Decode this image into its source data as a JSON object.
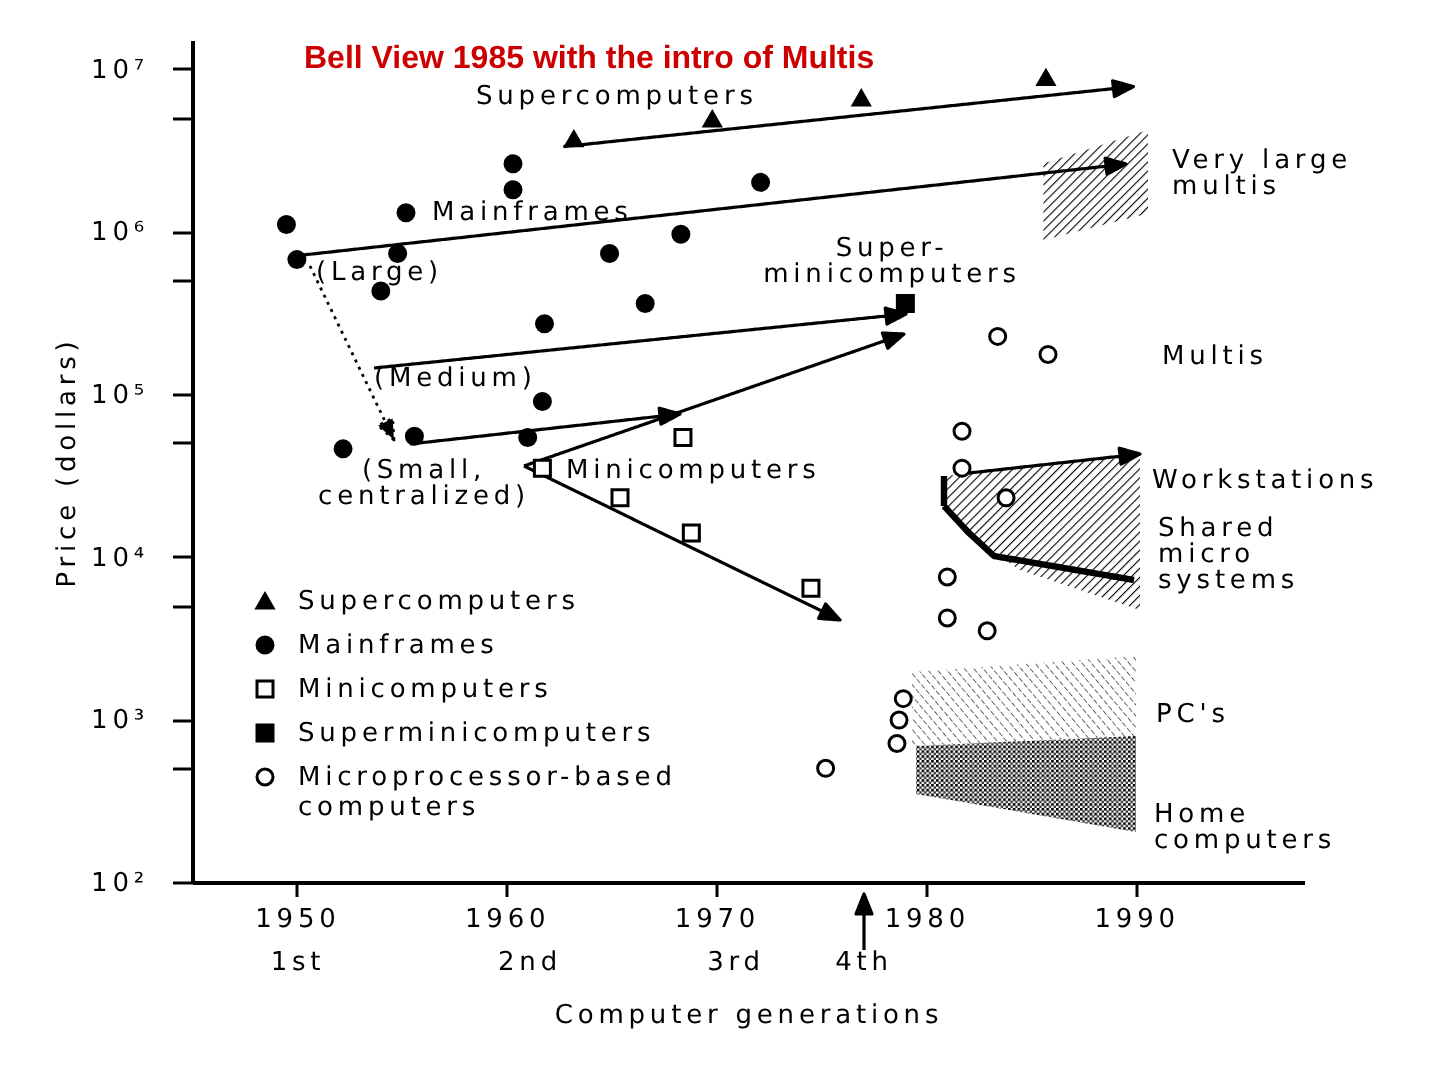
{
  "chart_data": {
    "type": "scatter",
    "title": "Bell View 1985 with the intro of Multis",
    "xlabel": "Computer generations",
    "ylabel": "Price (dollars)",
    "log": true,
    "legend": "bottom left",
    "xlim": [
      1945,
      1998
    ],
    "xticks": [
      1950,
      1960,
      1970,
      1980,
      1990
    ],
    "ylim": [
      100,
      15000000
    ],
    "yticks": [
      {
        "value": 100,
        "label": "10²"
      },
      {
        "value": 500,
        "label": null
      },
      {
        "value": 1000,
        "label": "10³"
      },
      {
        "value": 5000,
        "label": null
      },
      {
        "value": 10000,
        "label": "10⁴"
      },
      {
        "value": 50000,
        "label": null
      },
      {
        "value": 100000,
        "label": "10⁵"
      },
      {
        "value": 500000,
        "label": null
      },
      {
        "value": 1000000,
        "label": "10⁶"
      },
      {
        "value": 5000000,
        "label": null
      },
      {
        "value": 10000000,
        "label": "10⁷"
      }
    ],
    "series": [
      {
        "name": "Supercomputers",
        "marker": "triangle",
        "color": "#000000",
        "x": [
          1963.2,
          1969.8,
          1976.9,
          1985.7
        ],
        "values": [
          3700000,
          4900000,
          6600000,
          8800000
        ]
      },
      {
        "name": "Mainframes",
        "marker": "circle",
        "color": "#000000",
        "x": [
          1949.5,
          1950.0,
          1952.2,
          1954.0,
          1954.8,
          1955.2,
          1955.6,
          1960.3,
          1960.3,
          1961.0,
          1961.7,
          1961.8,
          1964.9,
          1966.6,
          1968.3,
          1972.1
        ],
        "values": [
          1100000,
          670000,
          46000,
          430000,
          730000,
          1300000,
          55000,
          2600000,
          1800000,
          54000,
          90000,
          270000,
          730000,
          360000,
          960000,
          2000000
        ]
      },
      {
        "name": "Minicomputers",
        "marker": "square",
        "color": "#000000",
        "x": [
          1961.7,
          1965.4,
          1968.4,
          1968.8,
          1974.5
        ],
        "values": [
          35000,
          23000,
          54000,
          14000,
          6400
        ]
      },
      {
        "name": "Superminicomputers",
        "marker": "square",
        "color": "#000000",
        "x": [
          1979.0
        ],
        "values": [
          360000
        ]
      },
      {
        "name": "Microprocessor-based computers",
        "marker": "circle",
        "color": "#000000",
        "x": [
          1975.2,
          1978.6,
          1978.7,
          1978.9,
          1981.0,
          1981.0,
          1981.7,
          1981.7,
          1982.9,
          1983.4,
          1983.8,
          1985.8
        ],
        "values": [
          500,
          710,
          990,
          1340,
          7500,
          4200,
          59000,
          35000,
          3500,
          226000,
          23000,
          175000
        ]
      }
    ],
    "annotations": [
      "Supercomputers",
      "Mainframes",
      "(Large)",
      "(Medium)",
      "(Small,\ncentralized)",
      "Minicomputers",
      "Super-\nminicomputers",
      "Very large\nmultis",
      "Multis",
      "Workstations",
      "Shared\nmicro\nsystems",
      "PC's",
      "Home\ncomputers",
      "1st",
      "2nd",
      "3rd",
      "4th"
    ]
  }
}
